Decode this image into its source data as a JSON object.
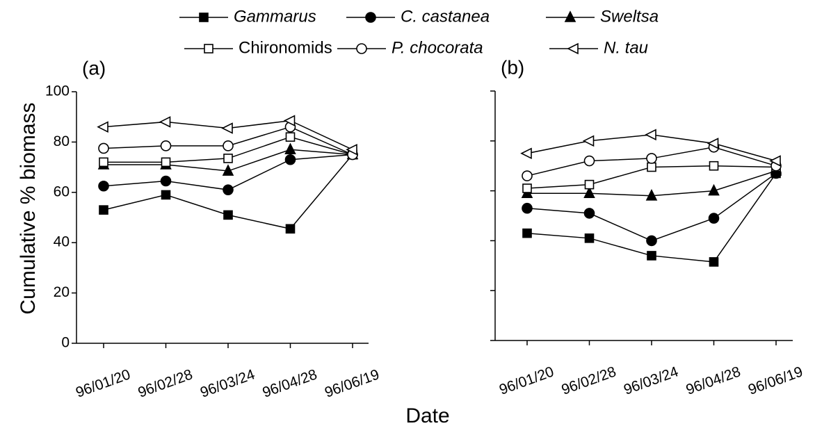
{
  "ylabel": "Cumulative % biomass",
  "xlabel": "Date",
  "chart_data": [
    {
      "type": "line",
      "panel_label": "(a)",
      "show_ytick_labels": true,
      "categories": [
        "96/01/20",
        "96/02/28",
        "96/03/24",
        "96/04/28",
        "96/06/19"
      ],
      "ylim": [
        0,
        100
      ],
      "yticks": [
        0,
        20,
        40,
        60,
        80,
        100
      ],
      "series": [
        {
          "name": "Gammarus",
          "marker": "square",
          "filled": true,
          "font_style": "italic",
          "color": "#000000",
          "values": [
            53,
            59,
            51,
            45.5,
            75
          ]
        },
        {
          "name": "C. castanea",
          "marker": "circle",
          "filled": true,
          "font_style": "italic",
          "color": "#000000",
          "values": [
            62.5,
            64.5,
            61,
            73,
            75
          ]
        },
        {
          "name": "Sweltsa",
          "marker": "triangle",
          "filled": true,
          "font_style": "italic",
          "color": "#000000",
          "values": [
            71,
            71,
            68.5,
            77,
            75
          ]
        },
        {
          "name": "Chironomids",
          "marker": "square",
          "filled": false,
          "font_style": "normal",
          "color": "#000000",
          "values": [
            72,
            72,
            73.5,
            82,
            75
          ]
        },
        {
          "name": "P. chocorata",
          "marker": "circle",
          "filled": false,
          "font_style": "italic",
          "color": "#000000",
          "values": [
            77.5,
            78.5,
            78.5,
            86,
            75
          ]
        },
        {
          "name": "N. tau",
          "marker": "triangle-left",
          "filled": false,
          "font_style": "italic",
          "color": "#000000",
          "values": [
            86,
            88,
            85.5,
            88.5,
            77
          ]
        }
      ]
    },
    {
      "type": "line",
      "panel_label": "(b)",
      "show_ytick_labels": false,
      "categories": [
        "96/01/20",
        "96/02/28",
        "96/03/24",
        "96/04/28",
        "96/06/19"
      ],
      "ylim": [
        0,
        100
      ],
      "yticks": [
        0,
        20,
        40,
        60,
        80,
        100
      ],
      "series": [
        {
          "marker": "square",
          "filled": true,
          "color": "#000000",
          "values": [
            43,
            41,
            34,
            31.5,
            67
          ]
        },
        {
          "marker": "circle",
          "filled": true,
          "color": "#000000",
          "values": [
            53,
            51,
            40,
            49,
            67
          ]
        },
        {
          "marker": "triangle",
          "filled": true,
          "color": "#000000",
          "values": [
            59,
            59,
            58,
            60,
            68
          ]
        },
        {
          "marker": "square",
          "filled": false,
          "color": "#000000",
          "values": [
            61,
            62.5,
            69.5,
            70,
            69.5
          ]
        },
        {
          "marker": "circle",
          "filled": false,
          "color": "#000000",
          "values": [
            66,
            72,
            73,
            77.5,
            70
          ]
        },
        {
          "marker": "triangle-left",
          "filled": false,
          "color": "#000000",
          "values": [
            75,
            80,
            82.5,
            79,
            72
          ]
        }
      ]
    }
  ]
}
